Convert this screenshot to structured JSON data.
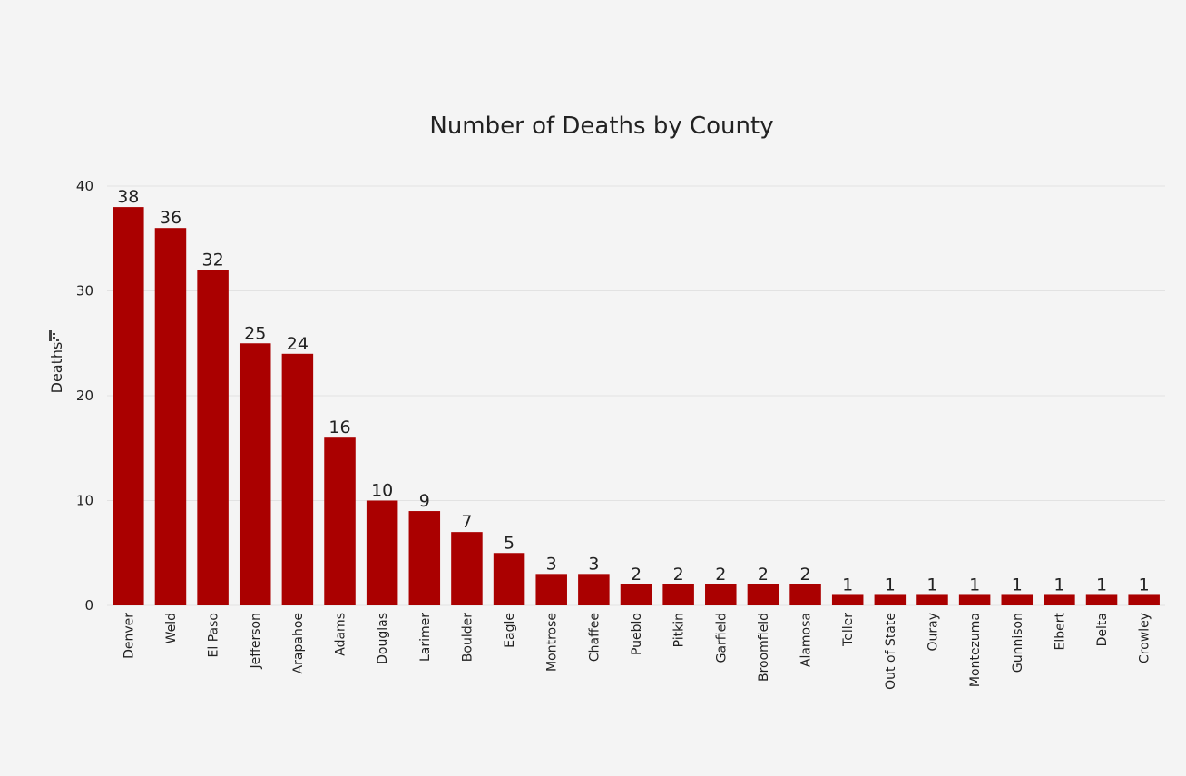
{
  "chart_data": {
    "type": "bar",
    "title": "Number of Deaths by County",
    "xlabel": "",
    "ylabel": "Deaths",
    "ylim": [
      0,
      40
    ],
    "yticks": [
      0,
      10,
      20,
      30,
      40
    ],
    "grid": true,
    "bar_color": "#aa0000",
    "categories": [
      "Denver",
      "Weld",
      "El Paso",
      "Jefferson",
      "Arapahoe",
      "Adams",
      "Douglas",
      "Larimer",
      "Boulder",
      "Eagle",
      "Montrose",
      "Chaffee",
      "Pueblo",
      "Pitkin",
      "Garfield",
      "Broomfield",
      "Alamosa",
      "Teller",
      "Out of State",
      "Ouray",
      "Montezuma",
      "Gunnison",
      "Elbert",
      "Delta",
      "Crowley"
    ],
    "values": [
      38,
      36,
      32,
      25,
      24,
      16,
      10,
      9,
      7,
      5,
      3,
      3,
      2,
      2,
      2,
      2,
      2,
      1,
      1,
      1,
      1,
      1,
      1,
      1,
      1
    ]
  },
  "icons": {
    "sort": "sort-icon"
  }
}
